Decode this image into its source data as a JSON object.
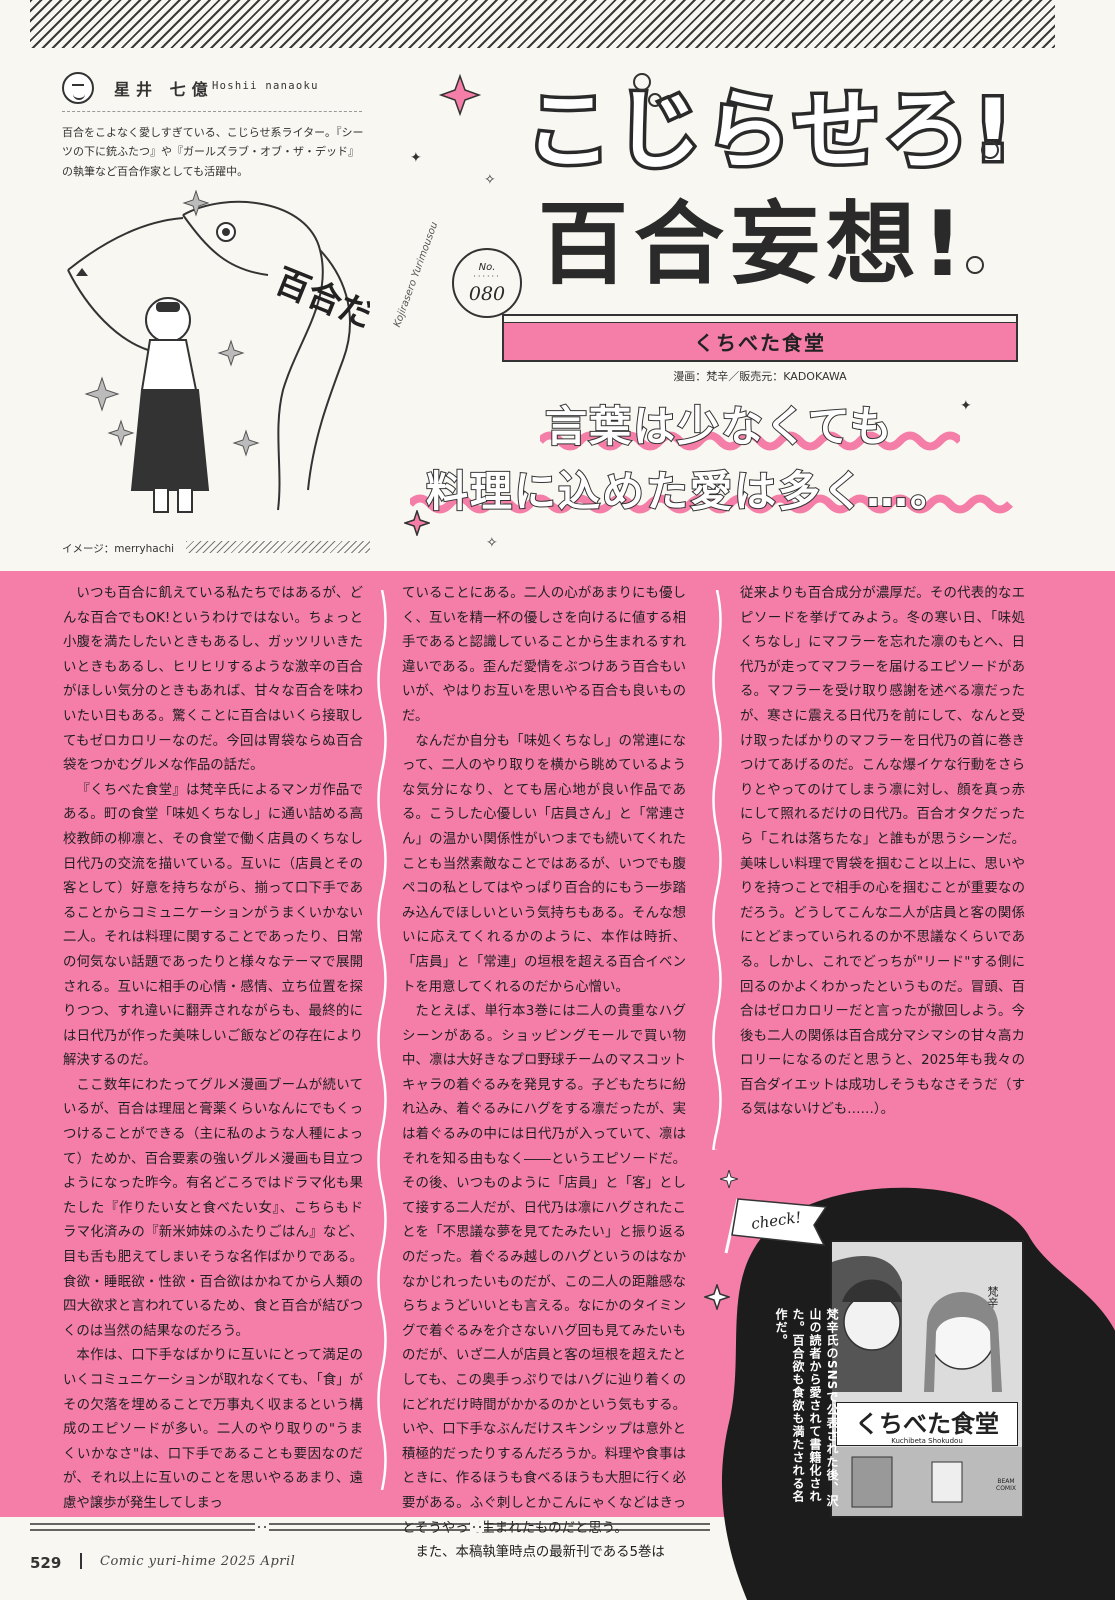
{
  "author": {
    "name": "星井 七億",
    "roman": "Hoshii nanaoku",
    "bio": "百合をこよなく愛しすぎている、こじらせ系ライター。『シーツの下に銃ふたつ』や『ガールズラブ・オブ・ザ・デッド』の執筆など百合作家としても活躍中。"
  },
  "illustration": {
    "caption": "イメージ：merryhachi",
    "fish_text": "百合だ!!"
  },
  "series": {
    "title_line1": "こじらせろ!",
    "title_line2": "百合妄想!",
    "roman": "Kojirasero Yurimousou",
    "no_label": "No.",
    "no_number": "080"
  },
  "work": {
    "title": "くちべた食堂",
    "credits": "漫画：梵辛／販売元：KADOKAWA"
  },
  "headline": {
    "line1": "言葉は少なくても",
    "line2": "料理に込めた愛は多く…。"
  },
  "columns": {
    "col1": [
      "いつも百合に飢えている私たちではあるが、どんな百合でもOK!というわけではない。ちょっと小腹を満たしたいときもあるし、ガッツリいきたいときもあるし、ヒリヒリするような激辛の百合がほしい気分のときもあれば、甘々な百合を味わいたい日もある。驚くことに百合はいくら接取してもゼロカロリーなのだ。今回は胃袋ならぬ百合袋をつかむグルメな作品の話だ。",
      "『くちべた食堂』は梵辛氏によるマンガ作品である。町の食堂「味処くちなし」に通い詰める高校教師の柳凛と、その食堂で働く店員のくちなし日代乃の交流を描いている。互いに（店員とその客として）好意を持ちながら、揃って口下手であることからコミュニケーションがうまくいかない二人。それは料理に関することであったり、日常の何気ない話題であったりと様々なテーマで展開される。互いに相手の心情・感情、立ち位置を探りつつ、すれ違いに翻弄されながらも、最終的には日代乃が作った美味しいご飯などの存在により解決するのだ。",
      "ここ数年にわたってグルメ漫画ブームが続いているが、百合は理屈と膏薬くらいなんにでもくっつけることができる（主に私のような人種によって）ためか、百合要素の強いグルメ漫画も目立つようになった昨今。有名どころではドラマ化も果たした『作りたい女と食べたい女』、こちらもドラマ化済みの『新米姉妹のふたりごはん』など、目も舌も肥えてしまいそうな名作ばかりである。食欲・睡眠欲・性欲・百合欲はかねてから人類の四大欲求と言われているため、食と百合が結びつくのは当然の結果なのだろう。",
      "本作は、口下手なばかりに互いにとって満足のいくコミュニケーションが取れなくても、「食」がその欠落を埋めることで万事丸く収まるという構成のエピソードが多い。二人のやり取りの\"うまくいかなさ\"は、口下手であることも要因なのだが、それ以上に互いのことを思いやるあまり、遠慮や譲歩が発生してしまっ"
    ],
    "col2_lead": "ていることにある。二人の心があまりにも優しく、互いを精一杯の優しさを向けるに値する相手であると認識していることから生まれるすれ違いである。歪んだ愛情をぶつけあう百合もいいが、やはりお互いを思いやる百合も良いものだ。",
    "col2": [
      "なんだか自分も「味処くちなし」の常連になって、二人のやり取りを横から眺めているような気分になり、とても居心地が良い作品である。こうした心優しい「店員さん」と「常連さん」の温かい関係性がいつまでも続いてくれたことも当然素敵なことではあるが、いつでも腹ペコの私としてはやっぱり百合的にもう一歩踏み込んでほしいという気持ちもある。そんな想いに応えてくれるかのように、本作は時折、「店員」と「常連」の垣根を超える百合イベントを用意してくれるのだから心憎い。",
      "たとえば、単行本3巻には二人の貴重なハグシーンがある。ショッピングモールで買い物中、凛は大好きなプロ野球チームのマスコットキャラの着ぐるみを発見する。子どもたちに紛れ込み、着ぐるみにハグをする凛だったが、実は着ぐるみの中には日代乃が入っていて、凛はそれを知る由もなく――というエピソードだ。その後、いつものように「店員」と「客」として接する二人だが、日代乃は凛にハグされたことを「不思議な夢を見てたみたい」と振り返るのだった。着ぐるみ越しのハグというのはなかなかじれったいものだが、この二人の距離感ならちょうどいいとも言える。なにかのタイミングで着ぐるみを介さないハグ回も見てみたいものだが、いざ二人が店員と客の垣根を超えたとしても、この奥手っぷりではハグに辿り着くのにどれだけ時間がかかるのかという気もする。いや、口下手なぶんだけスキンシップは意外と積極的だったりするんだろうか。料理や食事はときに、作るほうも食べるほうも大胆に行く必要がある。ふぐ刺しとかこんにゃくなどはきっとそうやって生まれたものだと思う。",
      "また、本稿執筆時点の最新刊である5巻は"
    ],
    "col3_lead": "従来よりも百合成分が濃厚だ。その代表的なエピソードを挙げてみよう。冬の寒い日、「味処くちなし」にマフラーを忘れた凛のもとへ、日代乃が走ってマフラーを届けるエピソードがある。マフラーを受け取り感謝を述べる凛だったが、寒さに震える日代乃を前にして、なんと受け取ったばかりのマフラーを日代乃の首に巻きつけてあげるのだ。こんな爆イケな行動をさらりとやってのけてしまう凛に対し、顔を真っ赤にして照れるだけの日代乃。百合オタクだったら「これは落ちたな」と誰もが思うシーンだ。美味しい料理で胃袋を掴むこと以上に、思いやりを持つことで相手の心を掴むことが重要なのだろう。どうしてこんな二人が店員と客の関係にとどまっていられるのか不思議なくらいである。しかし、これでどっちが\"リード\"する側に回るのかよくわかったというものだ。冒頭、百合はゼロカロリーだと言ったが撤回しよう。今後も二人の関係は百合成分マシマシの甘々高カロリーになるのだと思うと、2025年も我々の百合ダイエットは成功しそうもなさそうだ（する気はないけども……）。"
  },
  "check": {
    "flag": "check!",
    "caption": "梵辛氏のSNSで公表された後、沢山の読者から愛されて書籍化された。百合欲も食欲も満たされる名作だ。",
    "book_title": "くちべた食堂",
    "book_roman": "Kuchibeta Shokudou",
    "book_author": "梵辛",
    "book_label": "BEAM COMIX"
  },
  "footer": {
    "page": "529",
    "magazine": "Comic yuri-hime 2025 April"
  },
  "colors": {
    "pink": "#f47ea7",
    "ink": "#2a2a2a",
    "paper": "#f9f7f1"
  }
}
